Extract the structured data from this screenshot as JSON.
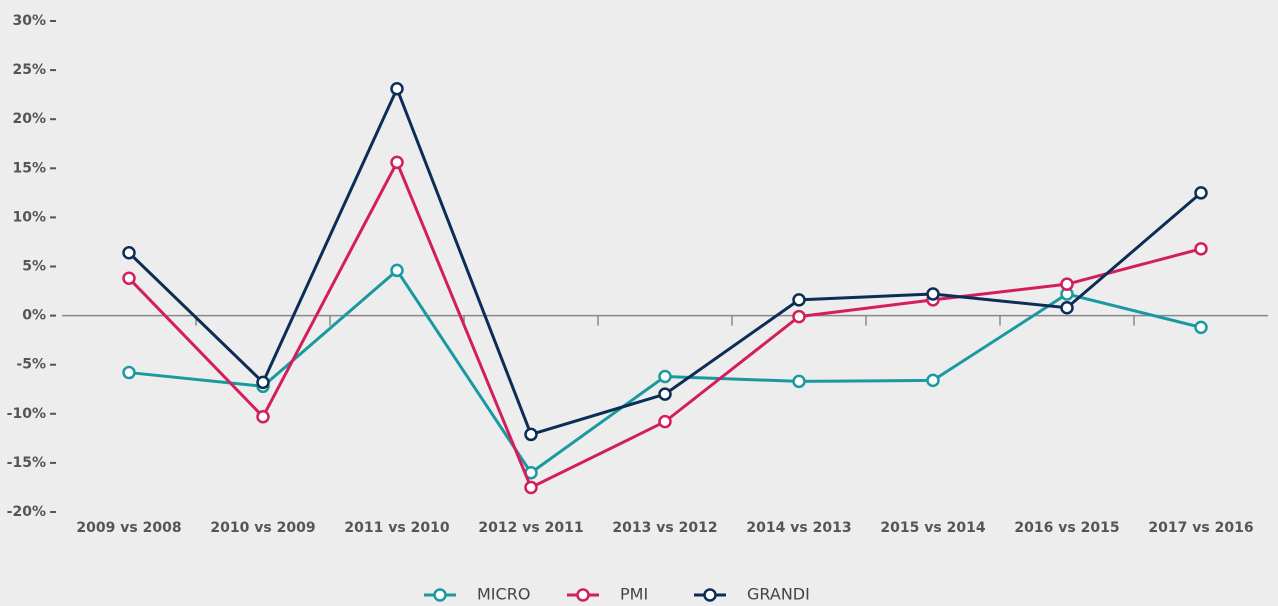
{
  "chart_data": {
    "type": "line",
    "categories": [
      "2009 vs 2008",
      "2010 vs 2009",
      "2011 vs 2010",
      "2012 vs 2011",
      "2013 vs 2012",
      "2014 vs 2013",
      "2015 vs 2014",
      "2016 vs 2015",
      "2017 vs 2016"
    ],
    "series": [
      {
        "name": "MICRO",
        "color": "#1a9aa0",
        "values": [
          -5.8,
          -7.2,
          4.6,
          -16,
          -6.2,
          -6.7,
          -6.6,
          2.2,
          -1.2
        ]
      },
      {
        "name": "PMI",
        "color": "#d21f5b",
        "values": [
          3.8,
          -10.3,
          15.6,
          -17.5,
          -10.8,
          -0.1,
          1.6,
          3.2,
          6.8
        ]
      },
      {
        "name": "GRANDI",
        "color": "#0c2d55",
        "values": [
          6.4,
          -6.8,
          23.1,
          -12.1,
          -8,
          1.6,
          2.2,
          0.8,
          12.5
        ]
      }
    ],
    "ylim": [
      -20,
      30
    ],
    "yticks": [
      {
        "value": -20,
        "label": "-20%"
      },
      {
        "value": -15,
        "label": "-15%"
      },
      {
        "value": -10,
        "label": "-10%"
      },
      {
        "value": -5,
        "label": "-5%"
      },
      {
        "value": 0,
        "label": "0%"
      },
      {
        "value": 5,
        "label": "5%"
      },
      {
        "value": 10,
        "label": "10%"
      },
      {
        "value": 15,
        "label": "15%"
      },
      {
        "value": 20,
        "label": "20%"
      },
      {
        "value": 25,
        "label": "25%"
      },
      {
        "value": 30,
        "label": "30%"
      }
    ],
    "grid": false,
    "legend": "bottom"
  }
}
